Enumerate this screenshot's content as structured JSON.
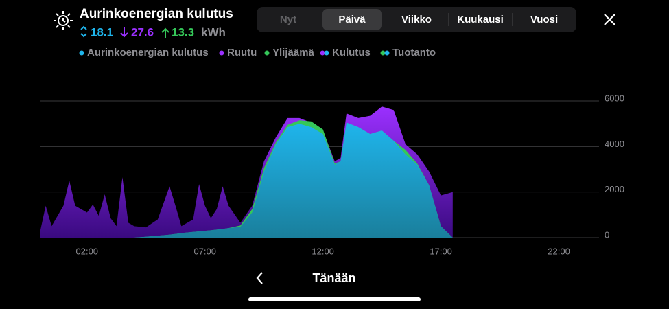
{
  "header": {
    "title": "Aurinkoenergian kulutus",
    "stats": [
      {
        "value": 18.1,
        "color": "#1fb5ec"
      },
      {
        "value": 27.6,
        "color": "#9b30ff"
      },
      {
        "value": 13.3,
        "color": "#35c759"
      }
    ],
    "unit": "kWh"
  },
  "tabs": {
    "items": [
      "Nyt",
      "Päivä",
      "Viikko",
      "Kuukausi",
      "Vuosi"
    ],
    "selected": 1
  },
  "chart_data": {
    "type": "area",
    "x": [
      0,
      0.25,
      0.5,
      1,
      1.25,
      1.5,
      2,
      2.25,
      2.5,
      2.75,
      3,
      3.25,
      3.5,
      3.75,
      4,
      4.5,
      5,
      5.5,
      5.75,
      6,
      6.5,
      6.75,
      7,
      7.25,
      7.5,
      7.75,
      8,
      8.5,
      9,
      9.5,
      10,
      10.5,
      11,
      11.5,
      12,
      12.5,
      12.75,
      13,
      13.5,
      14,
      14.5,
      15,
      15.5,
      16,
      16.5,
      17,
      17.5
    ],
    "series": [
      {
        "name": "Aurinkoenergian kulutus",
        "color": "#1fb5ec",
        "values": [
          0,
          0,
          0,
          0,
          0,
          0,
          0,
          0,
          0,
          0,
          0,
          0,
          0,
          0,
          0,
          40,
          80,
          130,
          160,
          200,
          250,
          270,
          300,
          320,
          350,
          380,
          420,
          480,
          1100,
          2900,
          4100,
          4850,
          5000,
          4850,
          4550,
          3200,
          3350,
          5050,
          4850,
          4550,
          4700,
          4250,
          3650,
          3200,
          2300,
          500,
          0
        ]
      },
      {
        "name": "Ruutu",
        "color": "#9b30ff",
        "values": [
          200,
          1400,
          500,
          1400,
          2500,
          1400,
          1100,
          1450,
          950,
          1900,
          850,
          500,
          2650,
          650,
          500,
          410,
          720,
          2120,
          1240,
          300,
          550,
          2080,
          1100,
          530,
          900,
          1870,
          980,
          170,
          300,
          450,
          300,
          400,
          250,
          200,
          150,
          150,
          150,
          400,
          400,
          800,
          1050,
          1350,
          450,
          450,
          600,
          1350,
          2000
        ]
      },
      {
        "name": "Ylijäämä",
        "color": "#35c759",
        "values": [
          0,
          0,
          0,
          0,
          0,
          0,
          0,
          0,
          0,
          0,
          0,
          0,
          0,
          0,
          0,
          0,
          0,
          0,
          0,
          0,
          0,
          0,
          0,
          0,
          0,
          0,
          0,
          50,
          150,
          150,
          80,
          100,
          150,
          250,
          200,
          50,
          0,
          0,
          0,
          0,
          0,
          0,
          200,
          50,
          0,
          0,
          0
        ]
      }
    ],
    "combined_legend": [
      "Kulutus",
      "Tuotanto"
    ],
    "xlim": [
      0,
      23.7
    ],
    "xticks": [
      {
        "value": 2,
        "label": "02:00"
      },
      {
        "value": 7,
        "label": "07:00"
      },
      {
        "value": 12,
        "label": "12:00"
      },
      {
        "value": 17,
        "label": "17:00"
      },
      {
        "value": 22,
        "label": "22:00"
      }
    ],
    "ylim": [
      0,
      6000
    ],
    "yticks": [
      0,
      2000,
      4000,
      6000
    ],
    "grid": true
  },
  "footer": {
    "label": "Tänään"
  }
}
